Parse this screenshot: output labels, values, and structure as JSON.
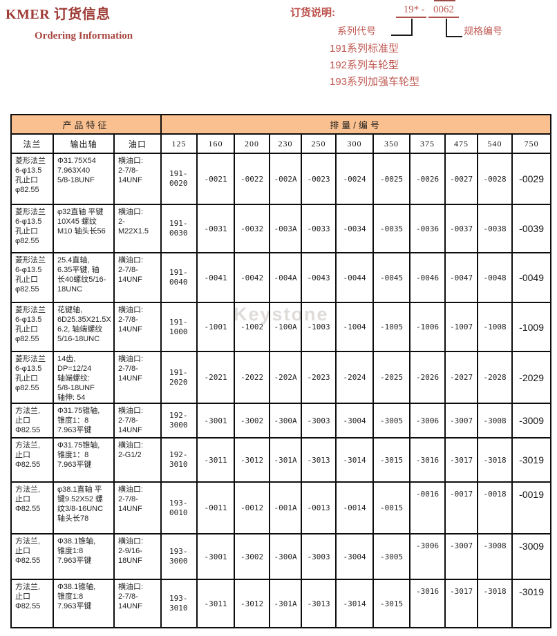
{
  "page": {
    "title": "KMER 订货信息",
    "subtitle": "Ordering Information",
    "watermark": "Keystone"
  },
  "ordering_note": {
    "label": "订货说明:",
    "code_prefix": "19*",
    "code_separator": "-",
    "code_suffix": "0062",
    "series_code_label": "系列代号",
    "spec_code_label": "规格编号",
    "series_lines": [
      "191系列标准型",
      "192系列车轮型",
      "193系列加强车轮型"
    ]
  },
  "table": {
    "header_product": "产品特征",
    "header_displacement": "排量/编号",
    "sub_headers": [
      "法兰",
      "输出轴",
      "油口"
    ],
    "displacement_columns": [
      "125",
      "160",
      "200",
      "230",
      "250",
      "300",
      "350",
      "375",
      "475",
      "540",
      "750"
    ],
    "rows": [
      {
        "flange": "菱形法兰\n6-φ13.5\n孔止口\nφ82.55",
        "shaft": "Φ31.75X54\n7.963X40\n5/8-18UNF",
        "port": "横油口:\n2-7/8-\n14UNF",
        "codes": [
          "191-\n0020",
          "-0021",
          "-0022",
          "-002A",
          "-0023",
          "-0024",
          "-0025",
          "-0026",
          "-0027",
          "-0028",
          "-0029"
        ]
      },
      {
        "flange": "菱形法兰\n6-φ13.5\n孔止口\nφ82.55",
        "shaft": "φ32直轴 平键\n10X45 螺纹\nM10 轴头长56",
        "port": "横油口:\n2-\nM22X1.5",
        "codes": [
          "191-\n0030",
          "-0031",
          "-0032",
          "-003A",
          "-0033",
          "-0034",
          "-0035",
          "-0036",
          "-0037",
          "-0038",
          "-0039"
        ]
      },
      {
        "flange": "菱形法兰\n6-φ13.5\n孔止口\nφ82.55",
        "shaft": "25.4直轴,\n6.35平键, 轴\n长40螺纹5/16-\n18UNC",
        "port": "横油口:\n2-7/8-\n14UNF",
        "codes": [
          "191-\n0040",
          "-0041",
          "-0042",
          "-004A",
          "-0043",
          "-0044",
          "-0045",
          "-0046",
          "-0047",
          "-0048",
          "-0049"
        ]
      },
      {
        "flange": "菱形法兰\n6-φ13.5\n孔止口\nφ82.55",
        "shaft": "花键轴,\n6D25.35X21.5X\n6.2, 轴端螺纹\n5/16-18UNC",
        "port": "横油口:\n2-7/8-\n14UNF",
        "codes": [
          "191-\n1000",
          "-1001",
          "-1002",
          "-100A",
          "-1003",
          "-1004",
          "-1005",
          "-1006",
          "-1007",
          "-1008",
          "-1009"
        ]
      },
      {
        "flange": "菱形法兰\n6-φ13.5\n孔止口\nφ82.55",
        "shaft": "14齿,\nDP=12/24\n轴端螺纹:\n5/8-18UNF\n轴伸: 54",
        "port": "横油口:\n2-7/8-\n14UNF",
        "codes": [
          "191-\n2020",
          "-2021",
          "-2022",
          "-202A",
          "-2023",
          "-2024",
          "-2025",
          "-2026",
          "-2027",
          "-2028",
          "-2029"
        ]
      },
      {
        "flange": "方法兰,\n止口\nΦ82.55",
        "shaft": "Φ31.75锥轴,\n锥度1：8\n7.963平键",
        "port": "横油口:\n2-7/8-\n14UNF",
        "codes": [
          "192-\n3000",
          "-3001",
          "-3002",
          "-300A",
          "-3003",
          "-3004",
          "-3005",
          "-3006",
          "-3007",
          "-3008",
          "-3009"
        ]
      },
      {
        "flange": "方法兰,\n止口\nΦ82.55",
        "shaft": "Φ31.75锥轴,\n锥度1：8\n7.963平键",
        "port": "横油口:\n2-G1/2",
        "codes": [
          "192-\n3010",
          "-3011",
          "-3012",
          "-301A",
          "-3013",
          "-3014",
          "-3015",
          "-3016",
          "-3017",
          "-3018",
          "-3019"
        ]
      },
      {
        "flange": "方法兰,\n止口\nΦ82.55",
        "shaft": "φ38.1直轴 平\n键9.52X52 螺\n纹3/8-16UNC\n轴头长78",
        "port": "横油口:\n2-7/8-\n14UNF",
        "codes": [
          "193-\n0010",
          "-0011",
          "-0012",
          "-001A",
          "-0013",
          "-0014",
          "-0015",
          "-0016",
          "-0017",
          "-0018",
          "-0019"
        ]
      },
      {
        "flange": "方法兰,\n止口\nΦ82.55",
        "shaft": "Φ38.1锥轴,\n锥度1:8\n7.963平键",
        "port": "横油口:\n2-9/16-\n18UNF",
        "codes": [
          "193-\n3000",
          "-3001",
          "-3002",
          "-300A",
          "-3003",
          "-3004",
          "-3005",
          "-3006",
          "-3007",
          "-3008",
          "-3009"
        ]
      },
      {
        "flange": "方法兰,\n止口\nΦ82.55",
        "shaft": "Φ38.1锥轴,\n锥度1:8\n7.963平键",
        "port": "横油口:\n2-7/8-\n14UNF",
        "codes": [
          "193-\n3010",
          "-3011",
          "-3012",
          "-301A",
          "-3013",
          "-3014",
          "-3015",
          "-3016",
          "-3017",
          "-3018",
          "-3019"
        ]
      }
    ]
  },
  "colors": {
    "title": "#9e3b36",
    "accent_red": "#c05a53",
    "header_fill": "#fac090",
    "border": "#0d0d0d",
    "watermark": "#b9afa8"
  }
}
